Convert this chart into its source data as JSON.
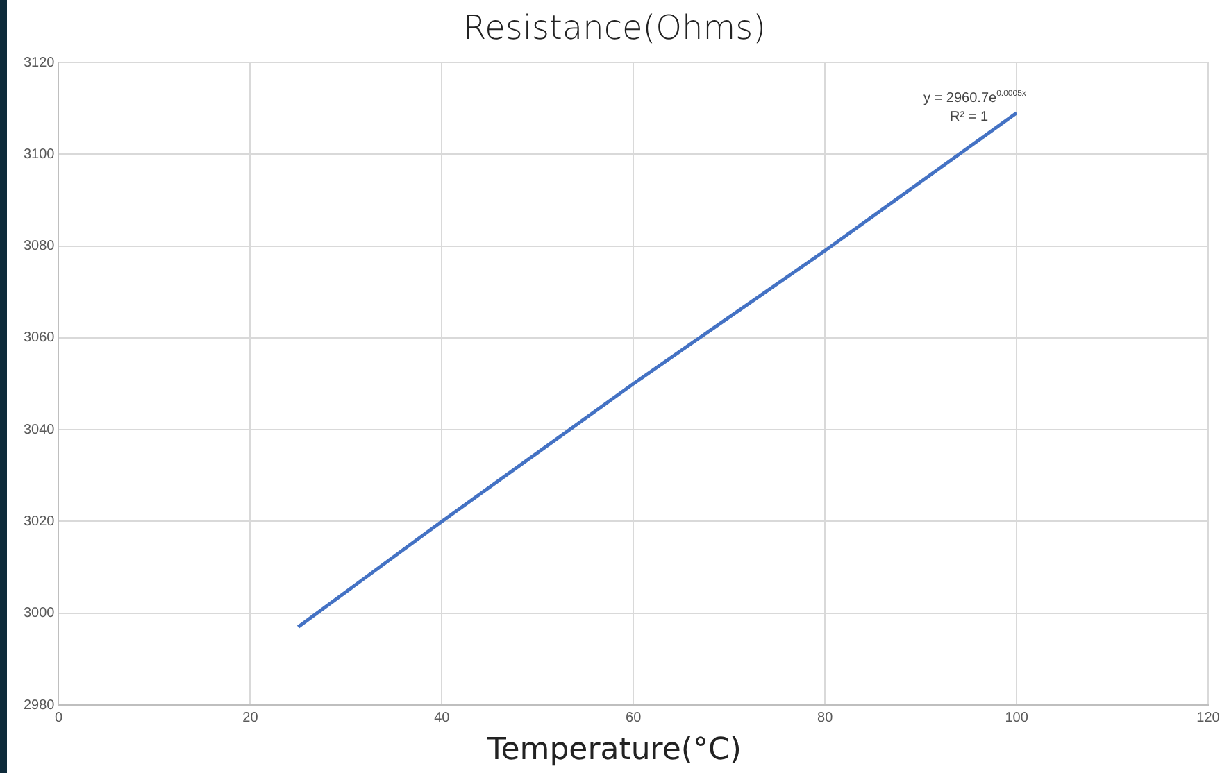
{
  "chart_data": {
    "type": "line",
    "title": "Resistance(Ohms)",
    "xlabel": "Temperature(°C)",
    "annotations": [
      "y = 2960.7e$^{0.0005x}$",
      "R² = 1"
    ],
    "series": [
      {
        "color": "#4472c4",
        "x": [
          25,
          40,
          60,
          80,
          100
        ],
        "values": [
          2997,
          3020,
          3050,
          3079,
          3109
        ]
      }
    ],
    "xlim": [
      0,
      120
    ],
    "xticks": [
      0,
      20,
      40,
      60,
      80,
      100,
      120
    ],
    "ylim": [
      2980,
      3120
    ],
    "yticks": [
      2980,
      3000,
      3020,
      3040,
      3060,
      3080,
      3100,
      3120
    ],
    "grid": true,
    "legend": false,
    "marker": "none",
    "line_style": "solid"
  }
}
